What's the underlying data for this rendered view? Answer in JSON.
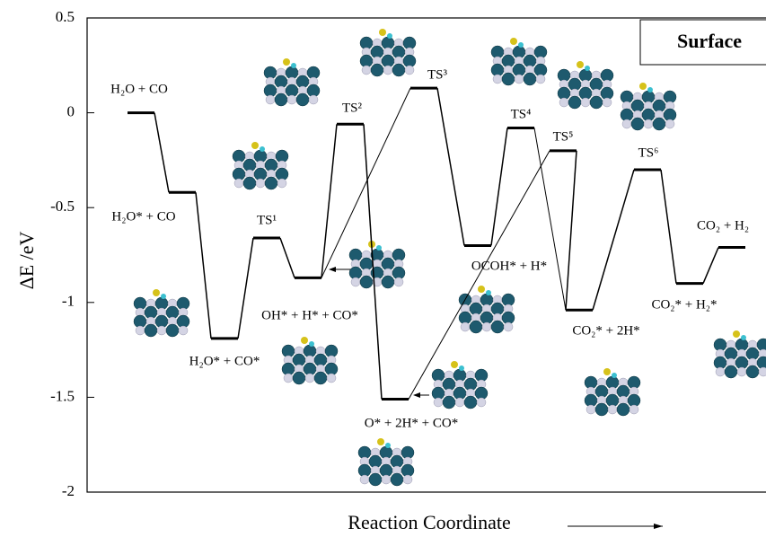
{
  "chart_data": {
    "type": "energy-levels",
    "y_label": "ΔE /eV",
    "x_label": "Reaction Coordinate",
    "legend_title": "Surface",
    "categories": [
      "H₂O + CO",
      "H₂O* + CO",
      "H₂O* + CO*",
      "TS¹",
      "OH* + H* + CO*",
      "TS²",
      "O* + 2H* + CO*",
      "TS³",
      "OCOH* + H*",
      "TS⁴",
      "TS⁵",
      "CO₂* + 2H*",
      "TS⁶",
      "CO₂* + H₂*",
      "CO₂ + H₂"
    ],
    "values": [
      0,
      -0.42,
      -1.19,
      -0.66,
      -0.87,
      -0.06,
      -1.51,
      0.13,
      -0.7,
      -0.08,
      -0.2,
      -1.04,
      -0.3,
      -0.9,
      -0.71
    ],
    "color": "#000000",
    "ylim": [
      -2,
      0.5
    ],
    "yticks": [
      -2,
      -1.5,
      -1,
      -0.5,
      0,
      0.5
    ]
  }
}
